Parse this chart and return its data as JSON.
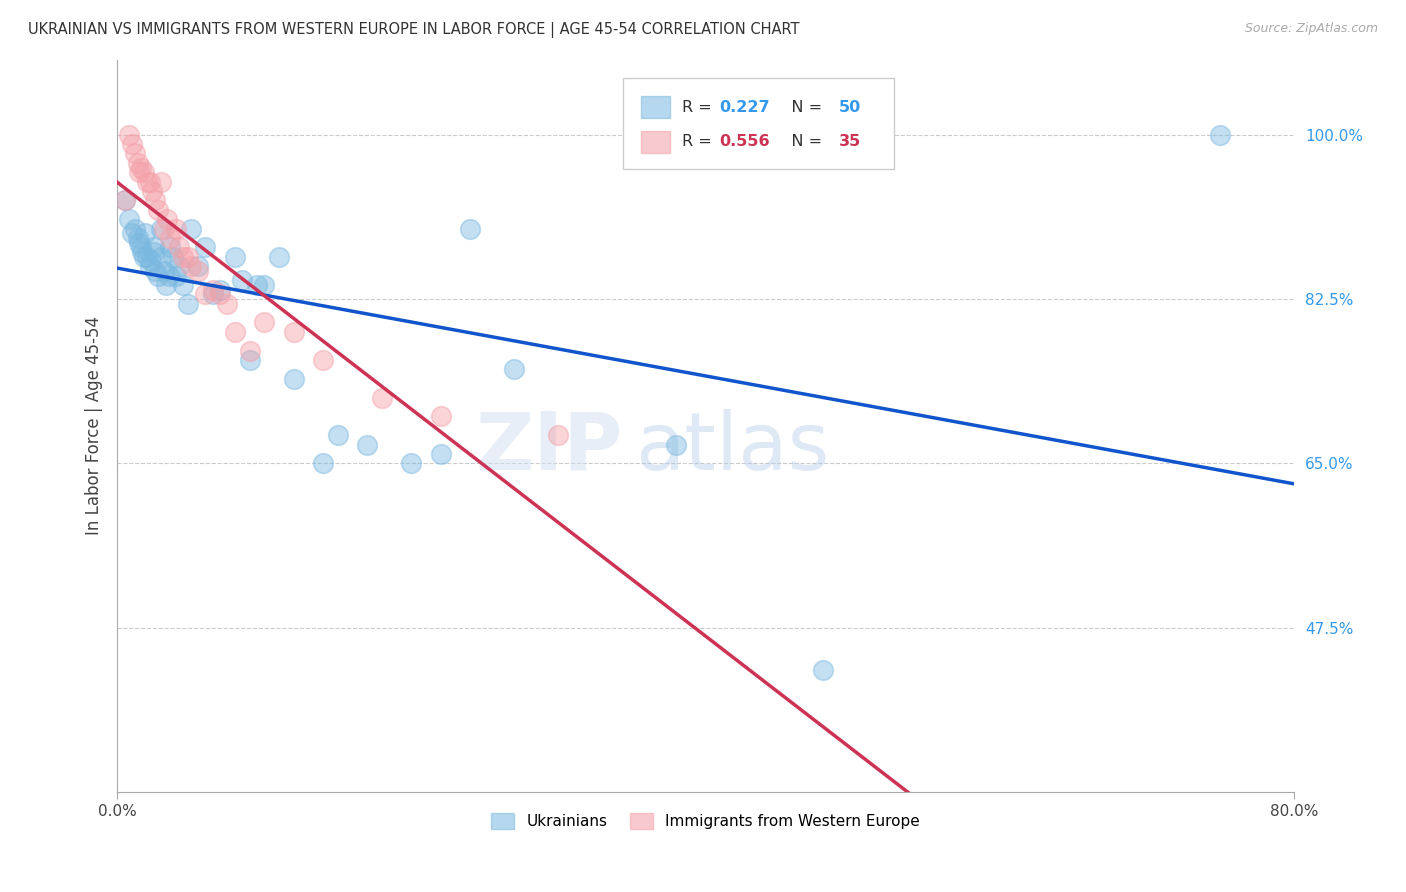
{
  "title": "UKRAINIAN VS IMMIGRANTS FROM WESTERN EUROPE IN LABOR FORCE | AGE 45-54 CORRELATION CHART",
  "source": "Source: ZipAtlas.com",
  "ylabel": "In Labor Force | Age 45-54",
  "xlim": [
    0.0,
    0.8
  ],
  "ylim": [
    0.3,
    1.08
  ],
  "yticks": [
    0.475,
    0.65,
    0.825,
    1.0
  ],
  "ytick_labels": [
    "47.5%",
    "65.0%",
    "82.5%",
    "100.0%"
  ],
  "xticks": [
    0.0,
    0.8
  ],
  "xtick_labels": [
    "0.0%",
    "80.0%"
  ],
  "background_color": "#ffffff",
  "grid_color": "#cccccc",
  "blue_color": "#7ab8e0",
  "pink_color": "#f4a0a8",
  "blue_line_color": "#1155cc",
  "pink_line_color": "#cc3355",
  "r_blue": 0.227,
  "n_blue": 50,
  "r_pink": 0.556,
  "n_pink": 35,
  "legend_label_blue": "Ukrainians",
  "legend_label_pink": "Immigrants from Western Europe",
  "watermark_zip": "ZIP",
  "watermark_atlas": "atlas",
  "blue_points_x": [
    0.005,
    0.008,
    0.01,
    0.012,
    0.014,
    0.015,
    0.016,
    0.017,
    0.018,
    0.019,
    0.02,
    0.022,
    0.023,
    0.025,
    0.025,
    0.026,
    0.028,
    0.03,
    0.03,
    0.032,
    0.033,
    0.035,
    0.036,
    0.038,
    0.04,
    0.042,
    0.045,
    0.048,
    0.05,
    0.055,
    0.06,
    0.065,
    0.07,
    0.08,
    0.085,
    0.09,
    0.095,
    0.1,
    0.11,
    0.12,
    0.14,
    0.15,
    0.17,
    0.2,
    0.22,
    0.24,
    0.27,
    0.38,
    0.48,
    0.75
  ],
  "blue_points_y": [
    0.93,
    0.91,
    0.895,
    0.9,
    0.89,
    0.885,
    0.88,
    0.875,
    0.87,
    0.895,
    0.87,
    0.86,
    0.865,
    0.88,
    0.875,
    0.855,
    0.85,
    0.9,
    0.87,
    0.855,
    0.84,
    0.85,
    0.88,
    0.87,
    0.85,
    0.86,
    0.84,
    0.82,
    0.9,
    0.86,
    0.88,
    0.83,
    0.835,
    0.87,
    0.845,
    0.76,
    0.84,
    0.84,
    0.87,
    0.74,
    0.65,
    0.68,
    0.67,
    0.65,
    0.66,
    0.9,
    0.75,
    0.67,
    0.43,
    1.0
  ],
  "pink_points_x": [
    0.005,
    0.008,
    0.01,
    0.012,
    0.014,
    0.015,
    0.016,
    0.018,
    0.02,
    0.022,
    0.024,
    0.026,
    0.028,
    0.03,
    0.032,
    0.034,
    0.036,
    0.04,
    0.042,
    0.045,
    0.048,
    0.05,
    0.055,
    0.06,
    0.065,
    0.07,
    0.075,
    0.08,
    0.09,
    0.1,
    0.12,
    0.14,
    0.18,
    0.22,
    0.3
  ],
  "pink_points_y": [
    0.93,
    1.0,
    0.99,
    0.98,
    0.97,
    0.96,
    0.965,
    0.96,
    0.95,
    0.95,
    0.94,
    0.93,
    0.92,
    0.95,
    0.9,
    0.91,
    0.89,
    0.9,
    0.88,
    0.87,
    0.87,
    0.86,
    0.855,
    0.83,
    0.835,
    0.83,
    0.82,
    0.79,
    0.77,
    0.8,
    0.79,
    0.76,
    0.72,
    0.7,
    0.68
  ]
}
